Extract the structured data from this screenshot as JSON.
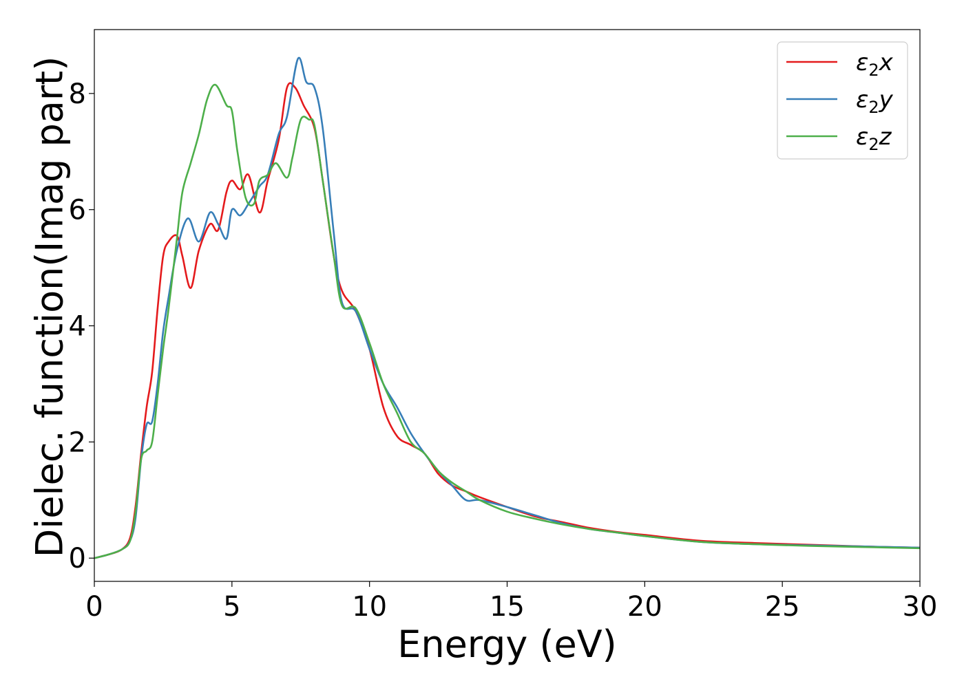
{
  "chart_data": {
    "type": "line",
    "xlabel": "Energy (eV)",
    "ylabel": "Dielec. function(Imag part)",
    "xlim": [
      0,
      30
    ],
    "ylim": [
      -0.4,
      9.1
    ],
    "xticks": [
      0,
      5,
      10,
      15,
      20,
      25,
      30
    ],
    "yticks": [
      0,
      2,
      4,
      6,
      8
    ],
    "grid": false,
    "legend_position": "top-right",
    "series": [
      {
        "name": "ε₂x",
        "legend_main": "ε",
        "legend_sub": "2",
        "legend_suffix": "x",
        "color": "#e41a1c",
        "x": [
          0,
          0.5,
          1.0,
          1.3,
          1.5,
          1.7,
          1.9,
          2.1,
          2.3,
          2.5,
          2.7,
          3.0,
          3.2,
          3.5,
          3.8,
          4.2,
          4.5,
          4.8,
          5.0,
          5.3,
          5.6,
          6.0,
          6.3,
          6.7,
          7.0,
          7.3,
          7.6,
          8.0,
          8.3,
          8.7,
          9.0,
          9.5,
          10.0,
          10.5,
          11.0,
          11.5,
          12.0,
          12.5,
          13.0,
          13.5,
          14.0,
          15.0,
          16.0,
          17.0,
          18.0,
          19.0,
          20.0,
          22.0,
          24.0,
          26.0,
          28.0,
          30.0
        ],
        "y": [
          0,
          0.06,
          0.15,
          0.35,
          0.9,
          1.8,
          2.6,
          3.2,
          4.3,
          5.2,
          5.45,
          5.55,
          5.2,
          4.65,
          5.3,
          5.75,
          5.65,
          6.3,
          6.5,
          6.35,
          6.6,
          5.95,
          6.5,
          7.2,
          8.1,
          8.1,
          7.8,
          7.4,
          6.5,
          5.2,
          4.6,
          4.25,
          3.6,
          2.6,
          2.1,
          1.95,
          1.8,
          1.45,
          1.25,
          1.15,
          1.05,
          0.88,
          0.72,
          0.62,
          0.52,
          0.45,
          0.4,
          0.3,
          0.26,
          0.23,
          0.2,
          0.18
        ]
      },
      {
        "name": "ε₂y",
        "legend_main": "ε",
        "legend_sub": "2",
        "legend_suffix": "y",
        "color": "#377eb8",
        "x": [
          0,
          0.5,
          1.0,
          1.3,
          1.5,
          1.7,
          1.9,
          2.1,
          2.3,
          2.5,
          2.7,
          3.0,
          3.4,
          3.8,
          4.2,
          4.5,
          4.8,
          5.0,
          5.3,
          5.6,
          6.0,
          6.3,
          6.7,
          7.0,
          7.4,
          7.7,
          8.0,
          8.3,
          8.7,
          9.0,
          9.5,
          10.0,
          10.5,
          11.0,
          11.5,
          12.0,
          12.5,
          13.0,
          13.5,
          14.0,
          15.0,
          16.0,
          17.0,
          18.0,
          19.0,
          20.0,
          22.0,
          24.0,
          26.0,
          28.0,
          30.0
        ],
        "y": [
          0,
          0.06,
          0.15,
          0.3,
          0.7,
          1.7,
          2.3,
          2.35,
          3.0,
          3.9,
          4.5,
          5.3,
          5.85,
          5.45,
          5.95,
          5.75,
          5.5,
          6.0,
          5.9,
          6.1,
          6.4,
          6.6,
          7.3,
          7.6,
          8.6,
          8.2,
          8.1,
          7.4,
          5.6,
          4.4,
          4.25,
          3.6,
          3.0,
          2.6,
          2.15,
          1.8,
          1.5,
          1.25,
          1.0,
          1.0,
          0.88,
          0.74,
          0.6,
          0.5,
          0.44,
          0.38,
          0.28,
          0.24,
          0.22,
          0.2,
          0.18
        ]
      },
      {
        "name": "ε₂z",
        "legend_main": "ε",
        "legend_sub": "2",
        "legend_suffix": "z",
        "color": "#4daf4a",
        "x": [
          0,
          0.5,
          1.0,
          1.3,
          1.5,
          1.7,
          1.9,
          2.1,
          2.3,
          2.5,
          2.7,
          3.0,
          3.2,
          3.5,
          3.8,
          4.1,
          4.4,
          4.8,
          5.0,
          5.2,
          5.5,
          5.8,
          6.0,
          6.3,
          6.6,
          7.0,
          7.2,
          7.5,
          7.8,
          8.0,
          8.3,
          8.7,
          9.0,
          9.5,
          10.0,
          10.5,
          11.0,
          11.5,
          12.0,
          12.5,
          13.0,
          13.5,
          14.0,
          15.0,
          16.0,
          17.0,
          18.0,
          19.0,
          20.0,
          22.0,
          24.0,
          26.0,
          28.0,
          30.0
        ],
        "y": [
          0,
          0.06,
          0.15,
          0.3,
          0.8,
          1.7,
          1.85,
          2.0,
          2.8,
          3.6,
          4.3,
          5.5,
          6.3,
          6.8,
          7.3,
          7.9,
          8.15,
          7.8,
          7.7,
          7.0,
          6.2,
          6.1,
          6.5,
          6.6,
          6.8,
          6.55,
          6.9,
          7.55,
          7.55,
          7.45,
          6.5,
          5.2,
          4.35,
          4.3,
          3.7,
          3.0,
          2.5,
          2.0,
          1.8,
          1.5,
          1.3,
          1.15,
          1.0,
          0.8,
          0.68,
          0.58,
          0.5,
          0.44,
          0.38,
          0.28,
          0.24,
          0.21,
          0.19,
          0.17
        ]
      }
    ]
  }
}
